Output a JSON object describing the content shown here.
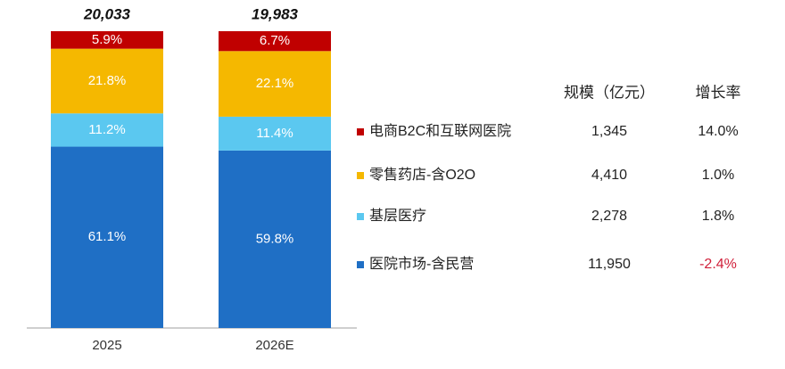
{
  "chart_data": {
    "type": "stacked_bar_100",
    "categories": [
      "2025",
      "2026E"
    ],
    "totals": [
      20033,
      19983
    ],
    "totals_labels": [
      "20,033",
      "19,983"
    ],
    "ylim": [
      0,
      100
    ],
    "series": [
      {
        "name": "医院市场-含民营",
        "color": "#1f6fc5",
        "values": [
          61.1,
          59.8
        ],
        "value_labels": [
          "61.1%",
          "59.8%"
        ]
      },
      {
        "name": "基层医疗",
        "color": "#5bc8f0",
        "values": [
          11.2,
          11.4
        ],
        "value_labels": [
          "11.2%",
          "11.4%"
        ]
      },
      {
        "name": "零售药店-含O2O",
        "color": "#f5b800",
        "values": [
          21.8,
          22.1
        ],
        "value_labels": [
          "21.8%",
          "22.1%"
        ]
      },
      {
        "name": "电商B2C和互联网医院",
        "color": "#c00000",
        "values": [
          5.9,
          6.7
        ],
        "value_labels": [
          "5.9%",
          "6.7%"
        ]
      }
    ],
    "table": {
      "headers": [
        "规模（亿元）",
        "增长率"
      ],
      "negative_color": "#d0203a",
      "rows": [
        [
          "11,950",
          "-2.4%"
        ],
        [
          "2,278",
          "1.8%"
        ],
        [
          "4,410",
          "1.0%"
        ],
        [
          "1,345",
          "14.0%"
        ]
      ]
    }
  }
}
